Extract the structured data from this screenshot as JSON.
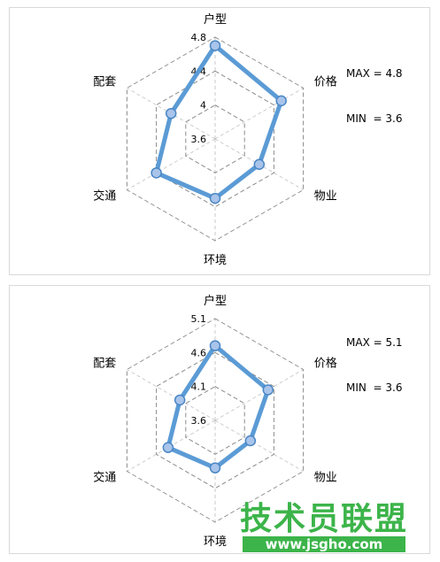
{
  "chart_data": [
    {
      "type": "radar",
      "categories": [
        "户型",
        "价格",
        "物业",
        "环境",
        "交通",
        "配套"
      ],
      "values": [
        4.7,
        4.5,
        4.2,
        4.3,
        4.4,
        4.2
      ],
      "rmin": 3.6,
      "rmax": 4.8,
      "tick_labels": [
        "3.6",
        "4",
        "4.4",
        "4.8"
      ],
      "tick_values": [
        3.6,
        4.0,
        4.4,
        4.8
      ],
      "stats": [
        "MAX = 4.8",
        "MIN  = 3.6"
      ],
      "grid": true,
      "series_color": "#5b9bd5",
      "marker_fill": "#a9c4ea",
      "grid_color": "#8c8c8c"
    },
    {
      "type": "radar",
      "categories": [
        "户型",
        "价格",
        "物业",
        "环境",
        "交通",
        "配套"
      ],
      "values": [
        4.7,
        4.5,
        4.2,
        4.3,
        4.4,
        4.2
      ],
      "rmin": 3.6,
      "rmax": 5.1,
      "tick_labels": [
        "3.6",
        "4.1",
        "4.6",
        "5.1"
      ],
      "tick_values": [
        3.6,
        4.1,
        4.6,
        5.1
      ],
      "stats": [
        "MAX = 5.1",
        "MIN  = 3.6"
      ],
      "grid": true,
      "series_color": "#5b9bd5",
      "marker_fill": "#a9c4ea",
      "grid_color": "#8c8c8c"
    }
  ],
  "watermark": {
    "title": "技术员联盟",
    "url": "www.jsgho.com",
    "color": "#3cb44a"
  }
}
